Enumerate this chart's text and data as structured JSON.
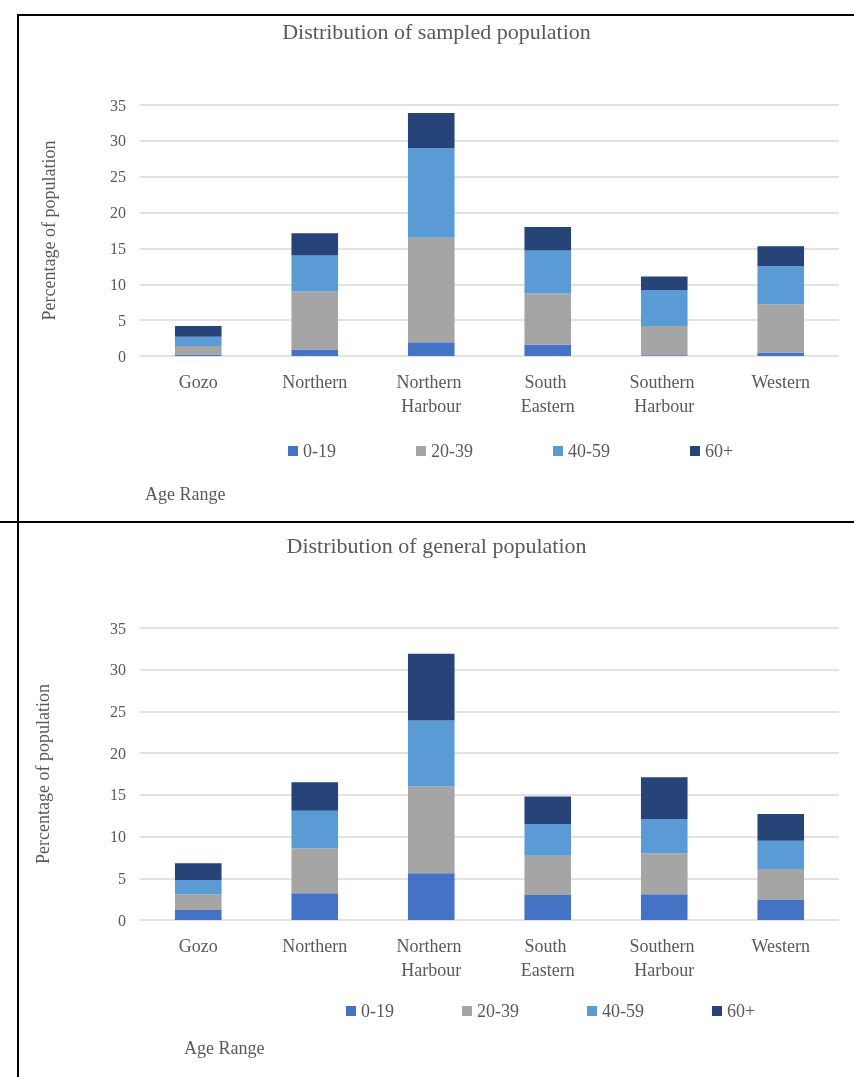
{
  "chart_data": [
    {
      "type": "bar",
      "title": "Distribution of sampled population",
      "ylabel": "Percentage of population",
      "xlabel": "Age Range",
      "categories": [
        "Gozo",
        "Northern",
        "Northern Harbour",
        "South Eastern",
        "Southern Harbour",
        "Western"
      ],
      "stacked": true,
      "ylim": [
        0,
        35
      ],
      "yticks": [
        0,
        5,
        10,
        15,
        20,
        25,
        30,
        35
      ],
      "grid": "y",
      "legend": "bottom",
      "series": [
        {
          "name": "0-19",
          "color": "#4472c4",
          "values": [
            0.2,
            0.9,
            1.9,
            1.6,
            0.1,
            0.5
          ]
        },
        {
          "name": "20-39",
          "color": "#a5a5a5",
          "values": [
            1.2,
            8.1,
            14.6,
            7.1,
            4.1,
            6.7
          ]
        },
        {
          "name": "40-59",
          "color": "#5b9bd5",
          "values": [
            1.3,
            5.0,
            12.5,
            6.0,
            5.0,
            5.3
          ]
        },
        {
          "name": "60+",
          "color": "#264478",
          "values": [
            1.5,
            3.1,
            4.9,
            3.3,
            1.9,
            2.8
          ]
        }
      ]
    },
    {
      "type": "bar",
      "title": "Distribution of general population",
      "ylabel": "Percentage of population",
      "xlabel": "Age Range",
      "categories": [
        "Gozo",
        "Northern",
        "Northern Harbour",
        "South Eastern",
        "Southern Harbour",
        "Western"
      ],
      "stacked": true,
      "ylim": [
        0,
        35
      ],
      "yticks": [
        0,
        5,
        10,
        15,
        20,
        25,
        30,
        35
      ],
      "grid": "y",
      "legend": "bottom",
      "series": [
        {
          "name": "0-19",
          "color": "#4472c4",
          "values": [
            1.2,
            3.2,
            5.6,
            3.0,
            3.1,
            2.4
          ]
        },
        {
          "name": "20-39",
          "color": "#a5a5a5",
          "values": [
            1.9,
            5.4,
            10.4,
            4.7,
            4.9,
            3.7
          ]
        },
        {
          "name": "40-59",
          "color": "#5b9bd5",
          "values": [
            1.7,
            4.5,
            7.9,
            3.8,
            4.1,
            3.4
          ]
        },
        {
          "name": "60+",
          "color": "#264478",
          "values": [
            2.0,
            3.4,
            8.0,
            3.3,
            5.0,
            3.2
          ]
        }
      ]
    }
  ]
}
